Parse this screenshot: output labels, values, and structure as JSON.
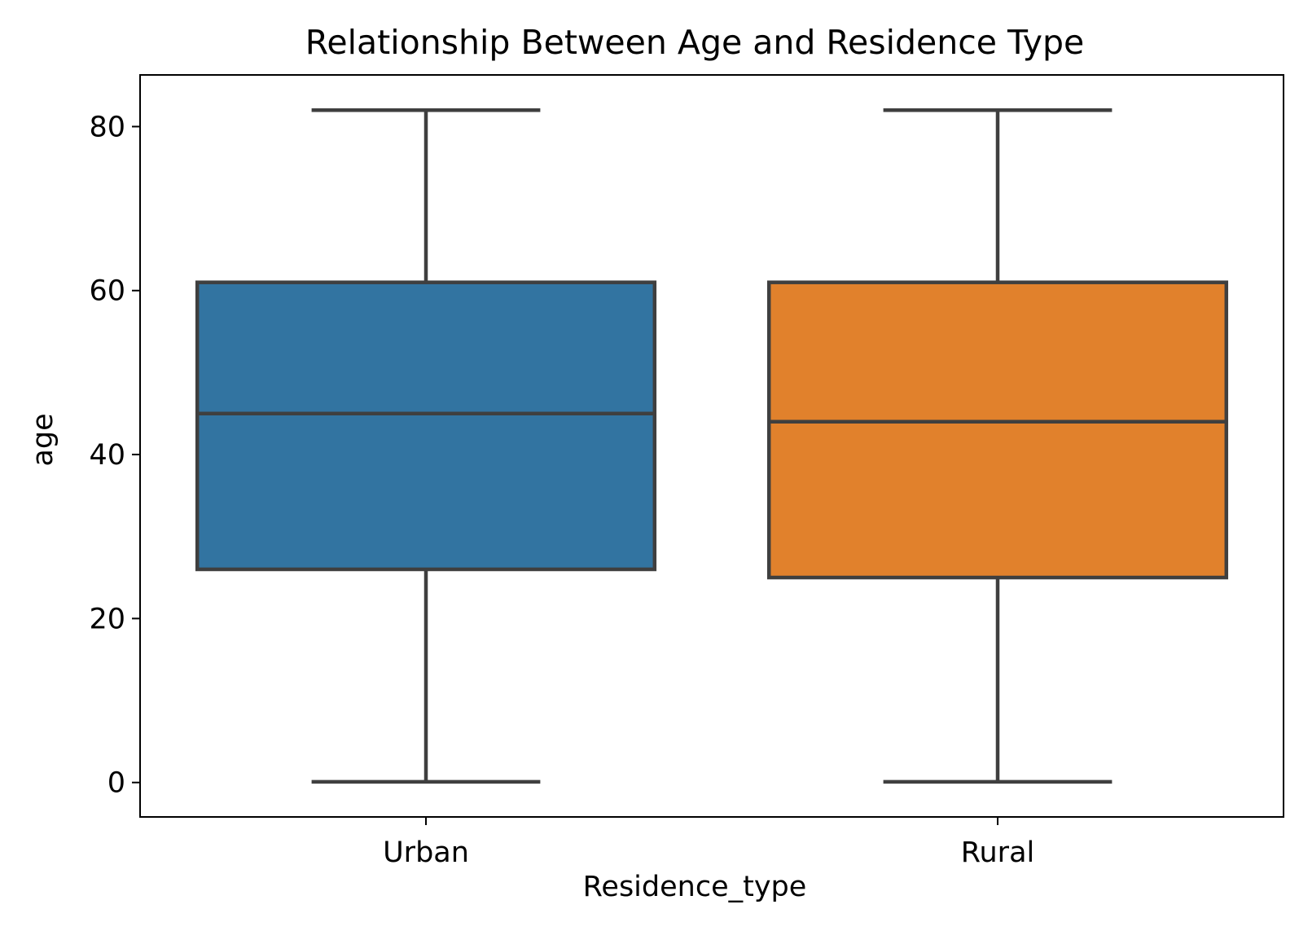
{
  "chart_data": {
    "type": "box",
    "title": "Relationship Between Age and Residence Type",
    "xlabel": "Residence_type",
    "ylabel": "age",
    "ylim": [
      -4.2,
      86.3
    ],
    "yticks": [
      0,
      20,
      40,
      60,
      80
    ],
    "categories": [
      "Urban",
      "Rural"
    ],
    "boxes": [
      {
        "category": "Urban",
        "whisker_low": 0.08,
        "q1": 26,
        "median": 45,
        "q3": 61,
        "whisker_high": 82,
        "color": "#3274a1"
      },
      {
        "category": "Rural",
        "whisker_low": 0.08,
        "q1": 25,
        "median": 44,
        "q3": 61,
        "whisker_high": 82,
        "color": "#e1812c"
      }
    ],
    "line_color": "#3f3f3f",
    "grid": false,
    "legend": "none"
  }
}
